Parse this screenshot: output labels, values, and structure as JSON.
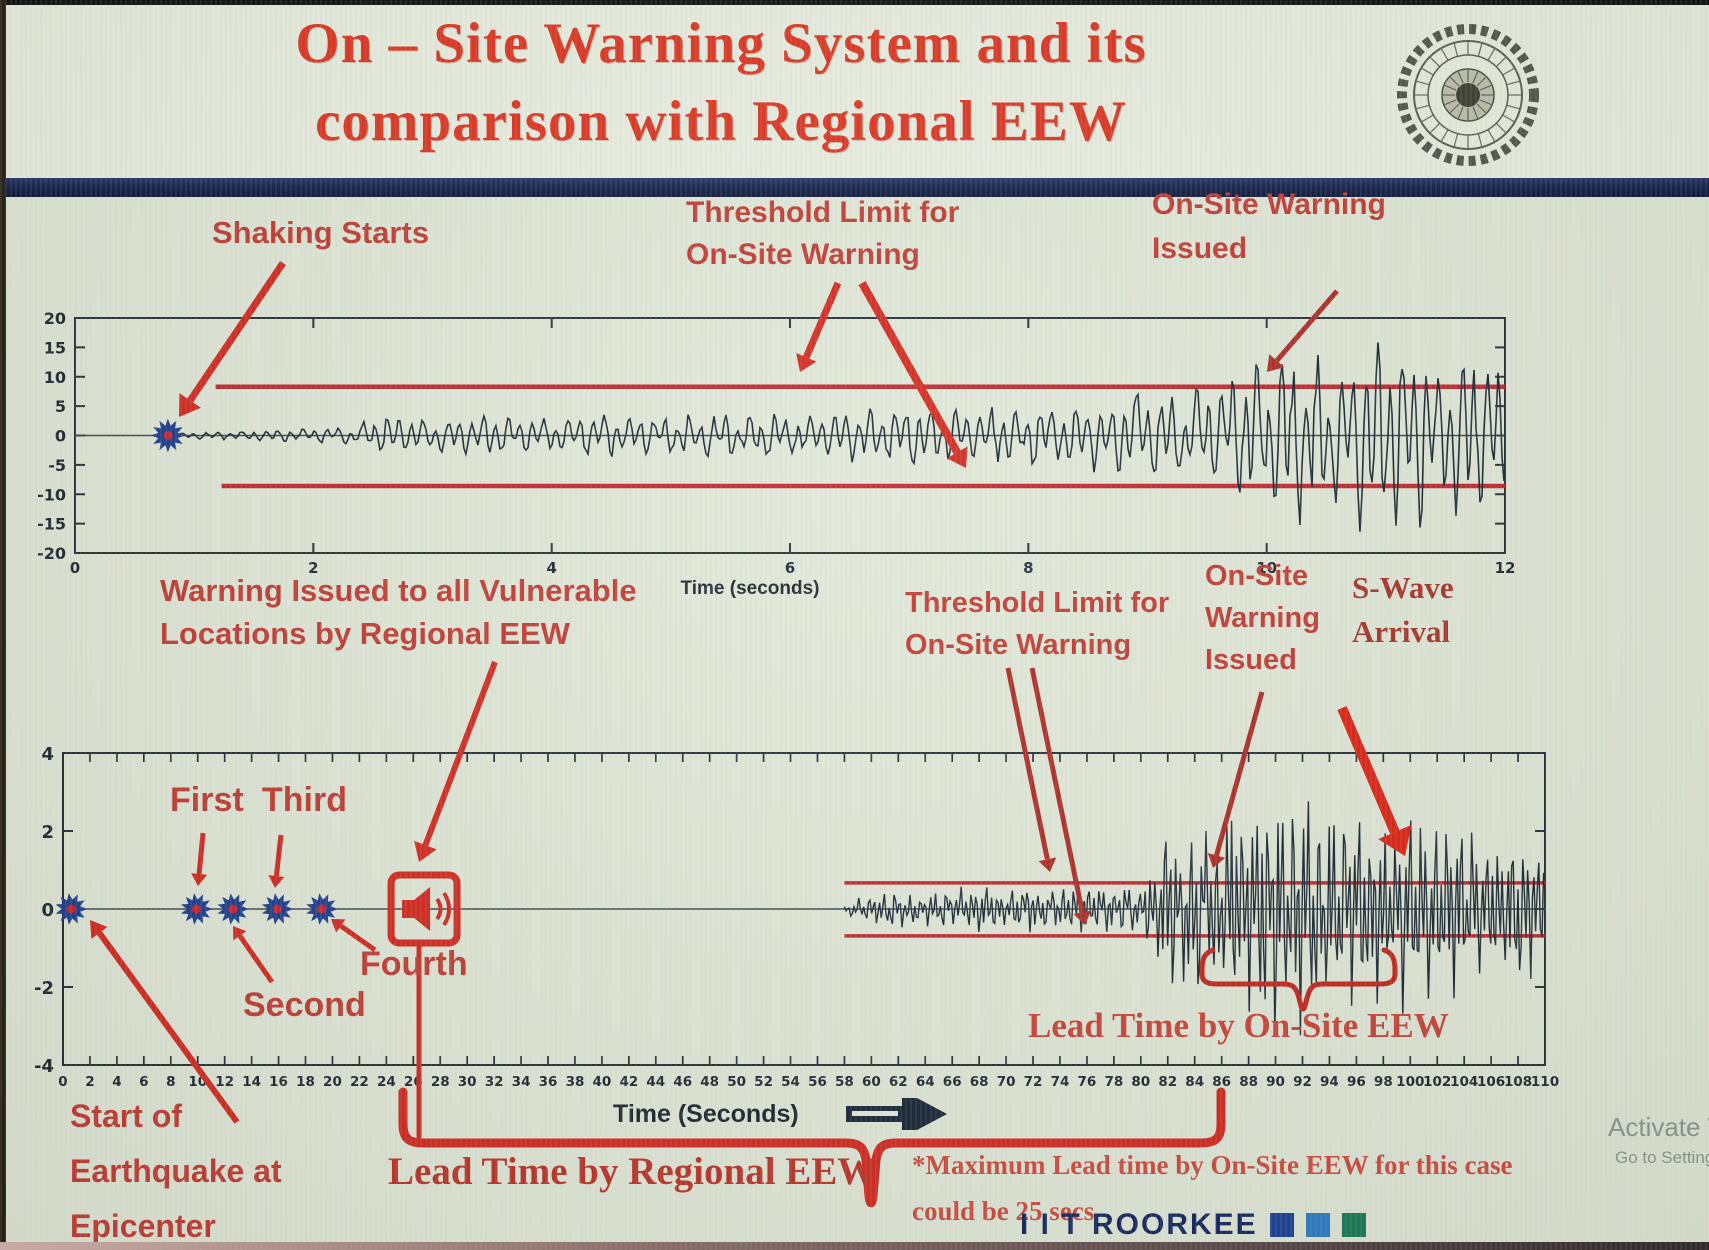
{
  "colors": {
    "accent_red": "#d6281e",
    "annotation_red": "#c43a31",
    "serif_red": "#bf3127",
    "note_red": "#cf4a3d",
    "threshold_red": "#c1272d",
    "navy": "#15265e",
    "waveform": "#1d2833",
    "marker_blue": "#1f3d8c",
    "marker_core": "#cc2233",
    "axis_dark": "#272e35",
    "brand_sq1": "#1d3f94",
    "brand_sq2": "#2e7cc4",
    "brand_sq3": "#1d7a55"
  },
  "header": {
    "title_line1": "On – Site Warning System and its",
    "title_line2": "comparison with Regional EEW",
    "logo": "iit-roorkee-seal"
  },
  "top_section": {
    "shaking_starts": "Shaking Starts",
    "threshold_line1": "Threshold Limit for",
    "threshold_line2": "On-Site Warning",
    "warning_line1": "On-Site Warning",
    "warning_line2": "Issued",
    "xlabel": "Time (seconds)"
  },
  "mid_section": {
    "regional_line1": "Warning Issued to all Vulnerable",
    "regional_line2": "Locations by Regional EEW",
    "threshold_line1": "Threshold Limit for",
    "threshold_line2": "On-Site Warning",
    "onsite_line1": "On-Site",
    "onsite_line2": "Warning",
    "onsite_line3": "Issued",
    "swave_line1": "S-Wave",
    "swave_line2": "Arrival"
  },
  "bottom_section": {
    "first": "First",
    "third": "Third",
    "second": "Second",
    "fourth": "Fourth",
    "lead_onsite": "Lead Time by On-Site EEW",
    "lead_regional": "Lead Time by Regional EEW",
    "start_line1": "Start of",
    "start_line2": "Earthquake at",
    "start_line3": "Epicenter",
    "xlabel": "Time (Seconds)",
    "note_line1": "*Maximum Lead time by On-Site EEW for this case",
    "note_line2": "could be 25 secs"
  },
  "footer": {
    "brand": "I I T ROORKEE",
    "watermark_line1": "Activate Wi",
    "watermark_line2": "Go to Settings"
  },
  "chart_data": [
    {
      "type": "line",
      "name": "onsite-warning-seismogram",
      "xlabel": "Time (seconds)",
      "xlim": [
        0,
        12
      ],
      "x_ticks": [
        0,
        2,
        4,
        6,
        8,
        10,
        12
      ],
      "ylim": [
        -20,
        20
      ],
      "y_ticks": [
        20,
        15,
        10,
        5,
        0,
        -5,
        -10,
        -15,
        -20
      ],
      "grid": false,
      "legend": null,
      "threshold_upper": 8.3,
      "threshold_lower": -8.6,
      "threshold_start_x": 1.18,
      "shaking_start_x": 0.78,
      "envelope": [
        [
          0.78,
          0.4
        ],
        [
          1.5,
          0.9
        ],
        [
          2.2,
          1.4
        ],
        [
          2.6,
          3.6
        ],
        [
          3.0,
          2.6
        ],
        [
          3.5,
          3.8
        ],
        [
          4.0,
          3.0
        ],
        [
          4.5,
          4.2
        ],
        [
          5.0,
          3.4
        ],
        [
          5.5,
          4.4
        ],
        [
          6.0,
          3.8
        ],
        [
          6.5,
          4.6
        ],
        [
          7.0,
          5.0
        ],
        [
          7.5,
          4.4
        ],
        [
          8.0,
          5.2
        ],
        [
          8.6,
          5.6
        ],
        [
          9.0,
          8.6
        ],
        [
          9.3,
          6.5
        ],
        [
          9.7,
          12.0
        ],
        [
          10.0,
          13.5
        ],
        [
          10.3,
          16.0
        ],
        [
          10.6,
          13.0
        ],
        [
          11.0,
          17.0
        ],
        [
          11.4,
          15.0
        ],
        [
          11.7,
          16.5
        ],
        [
          12.0,
          14.0
        ]
      ]
    },
    {
      "type": "line",
      "name": "regional-vs-onsite-seismogram",
      "xlabel": "Time (Seconds)",
      "xlim": [
        0,
        110
      ],
      "x_tick_step": 2,
      "ylim": [
        -4,
        4
      ],
      "y_ticks": [
        4,
        2,
        0,
        -2,
        -4
      ],
      "grid": false,
      "legend": null,
      "threshold_upper": 0.67,
      "threshold_lower": -0.69,
      "threshold_start_x": 58,
      "p_wave_markers": [
        0.6,
        9.9,
        12.6,
        15.9,
        19.2
      ],
      "warning_icon_x": 26.8,
      "envelope": [
        [
          58,
          0.1
        ],
        [
          60,
          0.4
        ],
        [
          62,
          0.5
        ],
        [
          64,
          0.45
        ],
        [
          66,
          0.5
        ],
        [
          68,
          0.55
        ],
        [
          70,
          0.5
        ],
        [
          72,
          0.55
        ],
        [
          74,
          0.5
        ],
        [
          76,
          0.6
        ],
        [
          78,
          0.55
        ],
        [
          80,
          0.7
        ],
        [
          81,
          1.1
        ],
        [
          82,
          2.1
        ],
        [
          83,
          1.7
        ],
        [
          84,
          2.3
        ],
        [
          85,
          1.9
        ],
        [
          86,
          2.5
        ],
        [
          87,
          3.1
        ],
        [
          88,
          2.7
        ],
        [
          89,
          3.3
        ],
        [
          90,
          2.9
        ],
        [
          91,
          2.5
        ],
        [
          92,
          3.1
        ],
        [
          93,
          2.5
        ],
        [
          94,
          2.9
        ],
        [
          95,
          2.3
        ],
        [
          96,
          2.7
        ],
        [
          97,
          2.2
        ],
        [
          98,
          2.6
        ],
        [
          99,
          2.1
        ],
        [
          100,
          2.7
        ],
        [
          101,
          2.2
        ],
        [
          102,
          2.4
        ],
        [
          103,
          1.9
        ],
        [
          104,
          2.3
        ],
        [
          105,
          1.8
        ],
        [
          106,
          2.1
        ],
        [
          107,
          1.7
        ],
        [
          108,
          2.0
        ],
        [
          109,
          1.6
        ],
        [
          110,
          1.8
        ]
      ]
    }
  ]
}
